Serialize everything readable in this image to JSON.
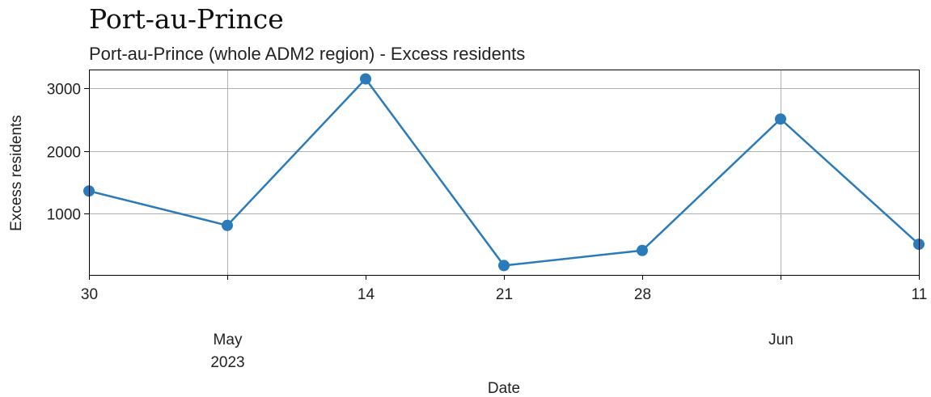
{
  "page_title": "Port-au-Prince",
  "chart_data": {
    "type": "line",
    "title": "Port-au-Prince (whole ADM2 region) - Excess residents",
    "xlabel": "Date",
    "ylabel": "Excess residents",
    "x": [
      "2023-04-30",
      "2023-05-07",
      "2023-05-14",
      "2023-05-21",
      "2023-05-28",
      "2023-06-04",
      "2023-06-11"
    ],
    "series": [
      {
        "values": [
          1360,
          810,
          3150,
          170,
          410,
          2510,
          510
        ]
      }
    ],
    "x_ticks_major": [
      {
        "date": "2023-04-30",
        "label": "30"
      },
      {
        "date": "2023-05-14",
        "label": "14"
      },
      {
        "date": "2023-05-21",
        "label": "21"
      },
      {
        "date": "2023-05-28",
        "label": "28"
      },
      {
        "date": "2023-06-11",
        "label": "11"
      }
    ],
    "x_ticks_month": [
      {
        "date": "2023-05-07",
        "label": "May",
        "sublabel": "2023"
      },
      {
        "date": "2023-06-04",
        "label": "Jun",
        "sublabel": ""
      }
    ],
    "xlim": [
      "2023-04-30",
      "2023-06-11"
    ],
    "ylim": [
      20,
      3300
    ],
    "y_ticks": [
      1000,
      2000,
      3000
    ],
    "grid": true,
    "line_color": "#2b7bba"
  }
}
